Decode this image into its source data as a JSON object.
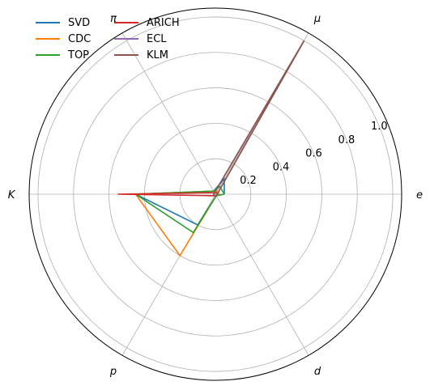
{
  "chart_data": {
    "type": "radar",
    "axes": [
      "e",
      "μ",
      "π",
      "K",
      "p",
      "d"
    ],
    "axis_angles_deg": [
      0,
      60,
      120,
      180,
      240,
      300
    ],
    "rlim": [
      0,
      1.05
    ],
    "r_ticks": [
      0.2,
      0.4,
      0.6,
      0.8,
      1.0
    ],
    "r_tick_labels": [
      "0.2",
      "0.4",
      "0.6",
      "0.8",
      "1.0"
    ],
    "grid": true,
    "legend_position": "top-left",
    "series": [
      {
        "name": "SVD",
        "color": "#1f77b4",
        "values": [
          0.05,
          0.1,
          0.02,
          0.45,
          0.2,
          0.01
        ]
      },
      {
        "name": "CDC",
        "color": "#ff7f0e",
        "values": [
          0.02,
          0.02,
          0.02,
          0.45,
          0.4,
          0.01
        ]
      },
      {
        "name": "TOP",
        "color": "#2ca02c",
        "values": [
          0.05,
          0.05,
          0.02,
          0.45,
          0.25,
          0.01
        ]
      },
      {
        "name": "ARICH",
        "color": "#d62728",
        "values": [
          0.01,
          0.01,
          0.01,
          0.55,
          0.01,
          0.01
        ]
      },
      {
        "name": "ECL",
        "color": "#9467bd",
        "values": [
          0.01,
          1.0,
          0.01,
          0.01,
          0.01,
          0.01
        ]
      },
      {
        "name": "KLM",
        "color": "#8c564b",
        "values": [
          0.01,
          1.0,
          0.01,
          0.01,
          0.01,
          0.01
        ]
      }
    ]
  }
}
